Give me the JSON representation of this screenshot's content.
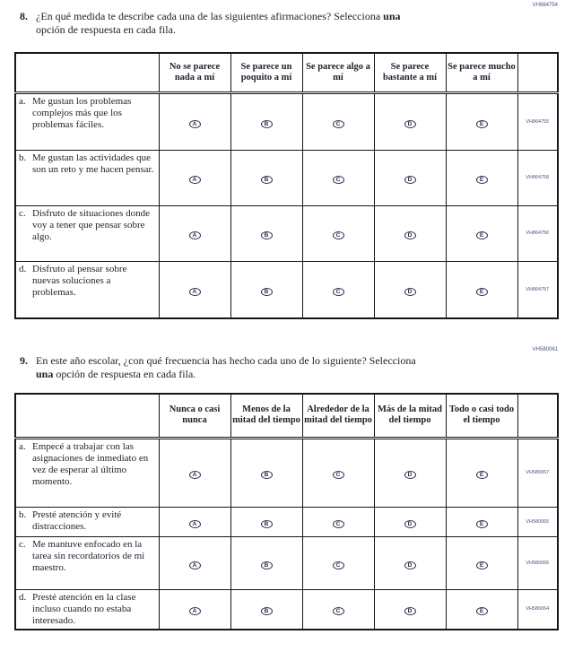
{
  "questions": [
    {
      "number": "8.",
      "code": "VH864754",
      "prompt": [
        {
          "text": "¿En qué medida te describe cada una de las siguientes afirmaciones? Selecciona ",
          "bold": false,
          "break_after": false
        },
        {
          "text": "una",
          "bold": true,
          "break_after": true
        },
        {
          "text": "opción de respuesta en cada fila.",
          "bold": false,
          "break_after": false
        }
      ],
      "columns": [
        "No se parece nada a mí",
        "Se parece un poquito a mí",
        "Se parece algo a mí",
        "Se parece bastante a mí",
        "Se parece mucho a mí"
      ],
      "options": [
        "A",
        "B",
        "C",
        "D",
        "E"
      ],
      "rows": [
        {
          "label": "a.",
          "statement": "Me gustan los problemas complejos más que los problemas fáciles.",
          "code": "VH864755"
        },
        {
          "label": "b.",
          "statement": "Me gustan las actividades que son un reto y me hacen pensar.",
          "code": "VH864758"
        },
        {
          "label": "c.",
          "statement": "Disfruto de situaciones donde voy a tener que pensar sobre algo.",
          "code": "VH864756"
        },
        {
          "label": "d.",
          "statement": "Disfruto al pensar sobre nuevas soluciones a problemas.",
          "code": "VH864757"
        }
      ]
    },
    {
      "number": "9.",
      "code": "VH580061",
      "prompt": [
        {
          "text": "En este año escolar, ¿con qué frecuencia has hecho cada uno de lo siguiente? Selecciona",
          "bold": false,
          "break_after": true
        },
        {
          "text": "una",
          "bold": true,
          "break_after": false
        },
        {
          "text": " opción de respuesta en cada fila.",
          "bold": false,
          "break_after": false
        }
      ],
      "columns": [
        "Nunca o casi nunca",
        "Menos de la mitad del tiempo",
        "Alrededor de la mitad del tiempo",
        "Más de la mitad del tiempo",
        "Todo o casi todo el tiempo"
      ],
      "options": [
        "A",
        "B",
        "C",
        "D",
        "E"
      ],
      "rows": [
        {
          "label": "a.",
          "statement": "Empecé a trabajar con las asignaciones de inmediato en vez de esperar al último momento.",
          "code": "VH580067"
        },
        {
          "label": "b.",
          "statement": "Presté atención y evité distracciones.",
          "code": "VH580065"
        },
        {
          "label": "c.",
          "statement": "Me mantuve enfocado en la tarea sin recordatorios de mi maestro.",
          "code": "VH580066"
        },
        {
          "label": "d.",
          "statement": "Presté atención en la clase incluso cuando no estaba interesado.",
          "code": "VH580064"
        }
      ]
    }
  ]
}
